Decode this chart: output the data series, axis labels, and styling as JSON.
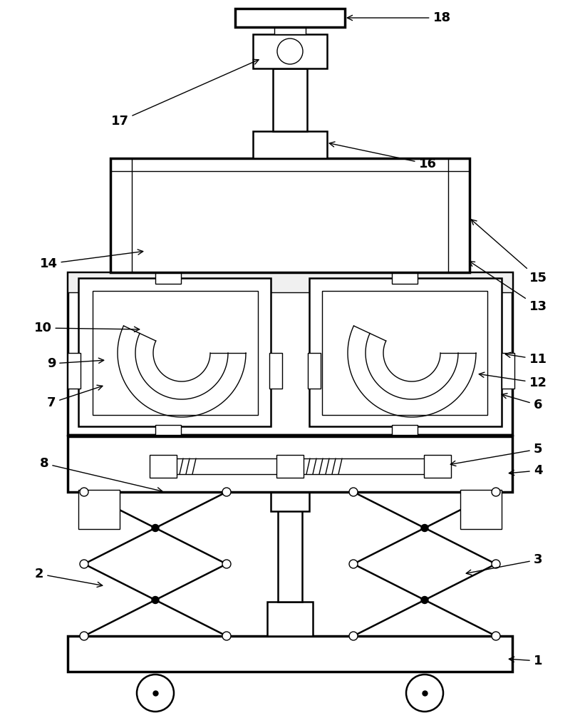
{
  "bg_color": "#ffffff",
  "lw": 1.8,
  "lw_thin": 1.0,
  "lw_thick": 2.5
}
